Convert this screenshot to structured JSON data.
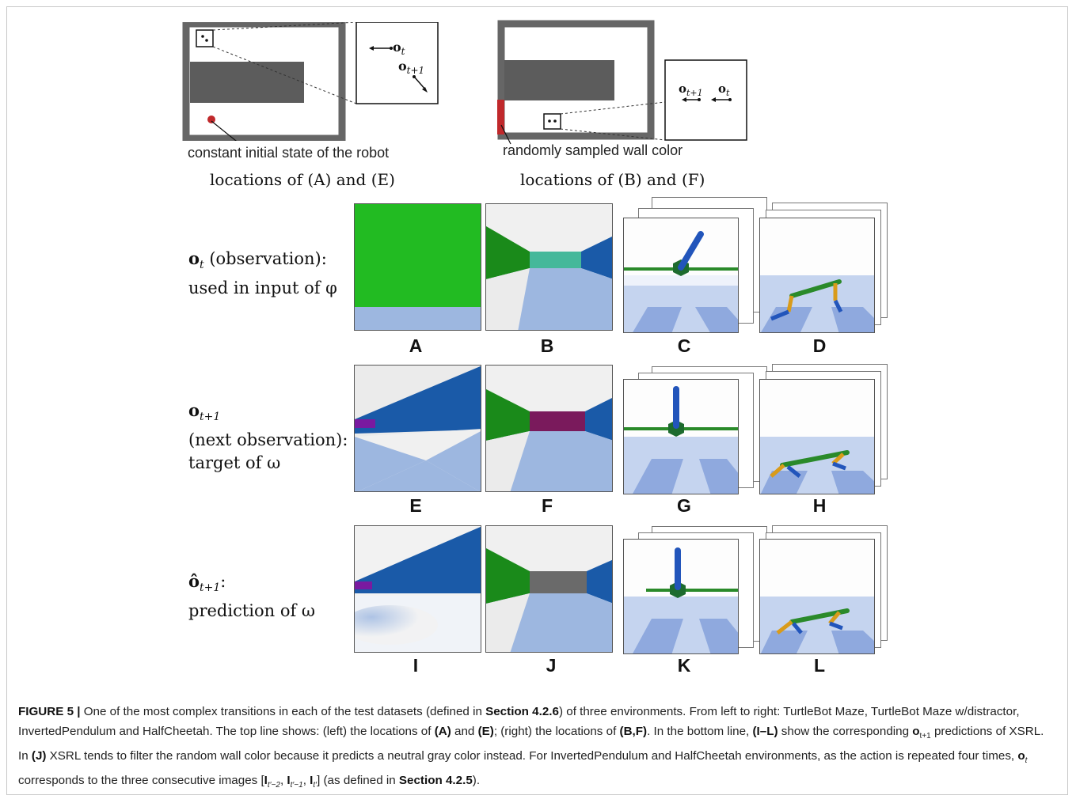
{
  "top": {
    "maze_left_annotation": "constant initial state of the robot",
    "maze_right_annotation": "randomly sampled wall color",
    "maze_left_locations": "locations of (A) and (E)",
    "maze_right_locations": "locations of (B) and (F)",
    "inset_left_ot": "o",
    "inset_left_ot_sub": "t",
    "inset_left_ot1": "o",
    "inset_left_ot1_sub": "t+1",
    "inset_right_ot1": "o",
    "inset_right_ot1_sub": "t+1",
    "inset_right_ot": "o",
    "inset_right_ot_sub": "t"
  },
  "rows": [
    {
      "symbol": "o",
      "sub": "t",
      "line1": " (observation):",
      "line2": "used in input of φ"
    },
    {
      "symbol": "o",
      "sub": "t+1",
      "line1": "(next observation):",
      "line2": "target of ω"
    },
    {
      "symbol": "ô",
      "sub": "t+1",
      "line1": ":",
      "line2": "prediction of ω"
    }
  ],
  "panel_labels": [
    "A",
    "B",
    "C",
    "D",
    "E",
    "F",
    "G",
    "H",
    "I",
    "J",
    "K",
    "L"
  ],
  "caption": {
    "fig": "FIGURE 5 |",
    "t1": " One of the most complex transitions in each of the test datasets (defined in ",
    "s1": "Section 4.2.6",
    "t2": ") of three environments. From left to right: TurtleBot Maze, TurtleBot Maze w/distractor, InvertedPendulum and HalfCheetah. The top line shows: (left) the locations of ",
    "A": "(A)",
    "t3": " and ",
    "E": "(E)",
    "t4": "; (right) the locations of ",
    "BF": "(B,F)",
    "t5": ". In the bottom line, ",
    "IL": "(I–L)",
    "t6": " show the corresponding ",
    "o": "o",
    "osub": "t+1",
    "t7": " predictions of XSRL. In ",
    "J": "(J)",
    "t8": " XSRL tends to filter the random wall color because it predicts a neutral gray color instead. For InvertedPendulum and HalfCheetah environments, as the action is repeated four times, ",
    "o2": "o",
    "o2sub": "t",
    "t9": " corresponds to the three consecutive images [",
    "I1": "I",
    "I1sub": "t′−2",
    "I2": "I",
    "I2sub": "t′−1",
    "I3": "I",
    "I3sub": "t′",
    "t10": "] (as defined in ",
    "s2": "Section 4.2.5",
    "t11": ")."
  },
  "colors": {
    "wall": "#666666",
    "green": "#22bb22",
    "blue": "#1a5aa8",
    "floor": "#9db7e0",
    "purple": "#7a1a5c",
    "teal": "#44b89a",
    "gray": "#6a6a6a",
    "red": "#c0282b"
  }
}
